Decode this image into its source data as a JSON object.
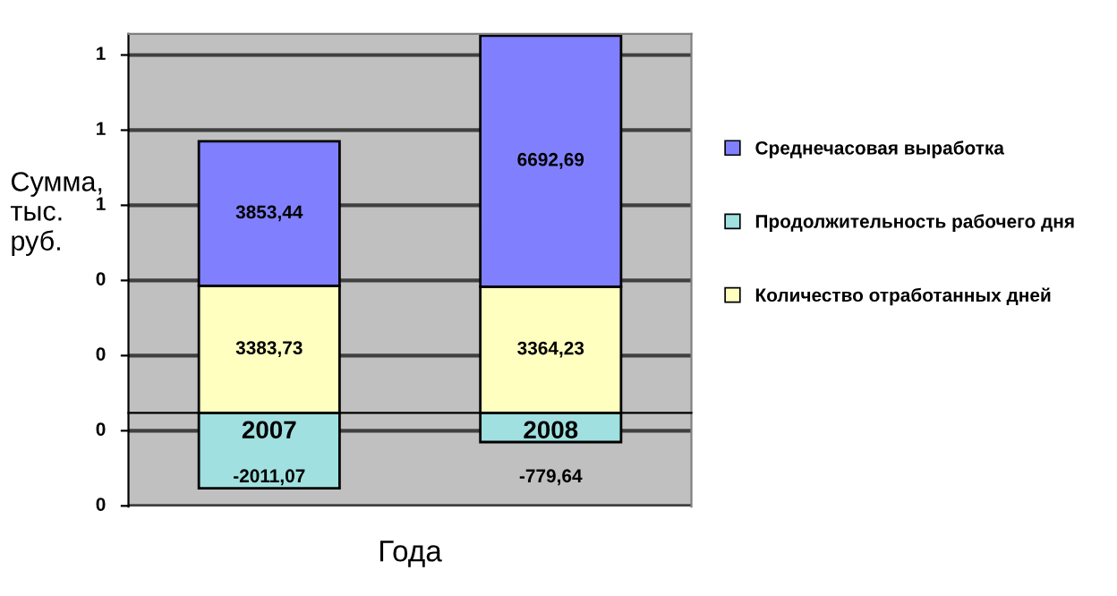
{
  "chart_data": {
    "type": "bar",
    "stacked": true,
    "xlabel": "Года",
    "ylabel": "Сумма, тыс. руб.",
    "categories": [
      "2007",
      "2008"
    ],
    "series": [
      {
        "name": "Количество отработанных дней",
        "color": "#ffffc0",
        "values": [
          3383.73,
          3364.23
        ],
        "value_labels": [
          "3383,73",
          "3364,23"
        ]
      },
      {
        "name": "Продолжительность рабочего дня",
        "color": "#a0e0e0",
        "values": [
          -2011.07,
          -779.64
        ],
        "value_labels": [
          "-2011,07",
          "-779,64"
        ]
      },
      {
        "name": "Среднечасовая выработка",
        "color": "#8080ff",
        "values": [
          3853.44,
          6692.69
        ],
        "value_labels": [
          "3853,44",
          "6692,69"
        ]
      }
    ],
    "ylim": [
      -2500,
      10100
    ],
    "annotations": [
      "1",
      "1",
      "1",
      "0",
      "0",
      "0",
      "0"
    ],
    "grid": "y",
    "legend": "right"
  }
}
